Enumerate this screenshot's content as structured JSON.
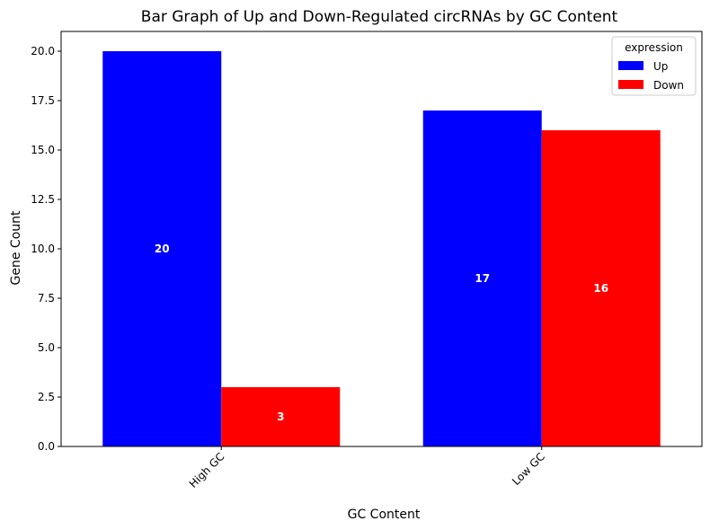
{
  "chart_data": {
    "type": "bar",
    "title": "Bar Graph of Up and Down-Regulated circRNAs by GC Content",
    "xlabel": "GC Content",
    "ylabel": "Gene Count",
    "categories": [
      "High GC",
      "Low GC"
    ],
    "series": [
      {
        "name": "Up",
        "values": [
          20,
          17
        ],
        "color": "#0000ff"
      },
      {
        "name": "Down",
        "values": [
          3,
          16
        ],
        "color": "#ff0000"
      }
    ],
    "ylim": [
      0,
      21
    ],
    "yticks": [
      "0.0",
      "2.5",
      "5.0",
      "7.5",
      "10.0",
      "12.5",
      "15.0",
      "17.5",
      "20.0"
    ],
    "grid": false,
    "legend": {
      "title": "expression",
      "placement": "top-right"
    }
  }
}
